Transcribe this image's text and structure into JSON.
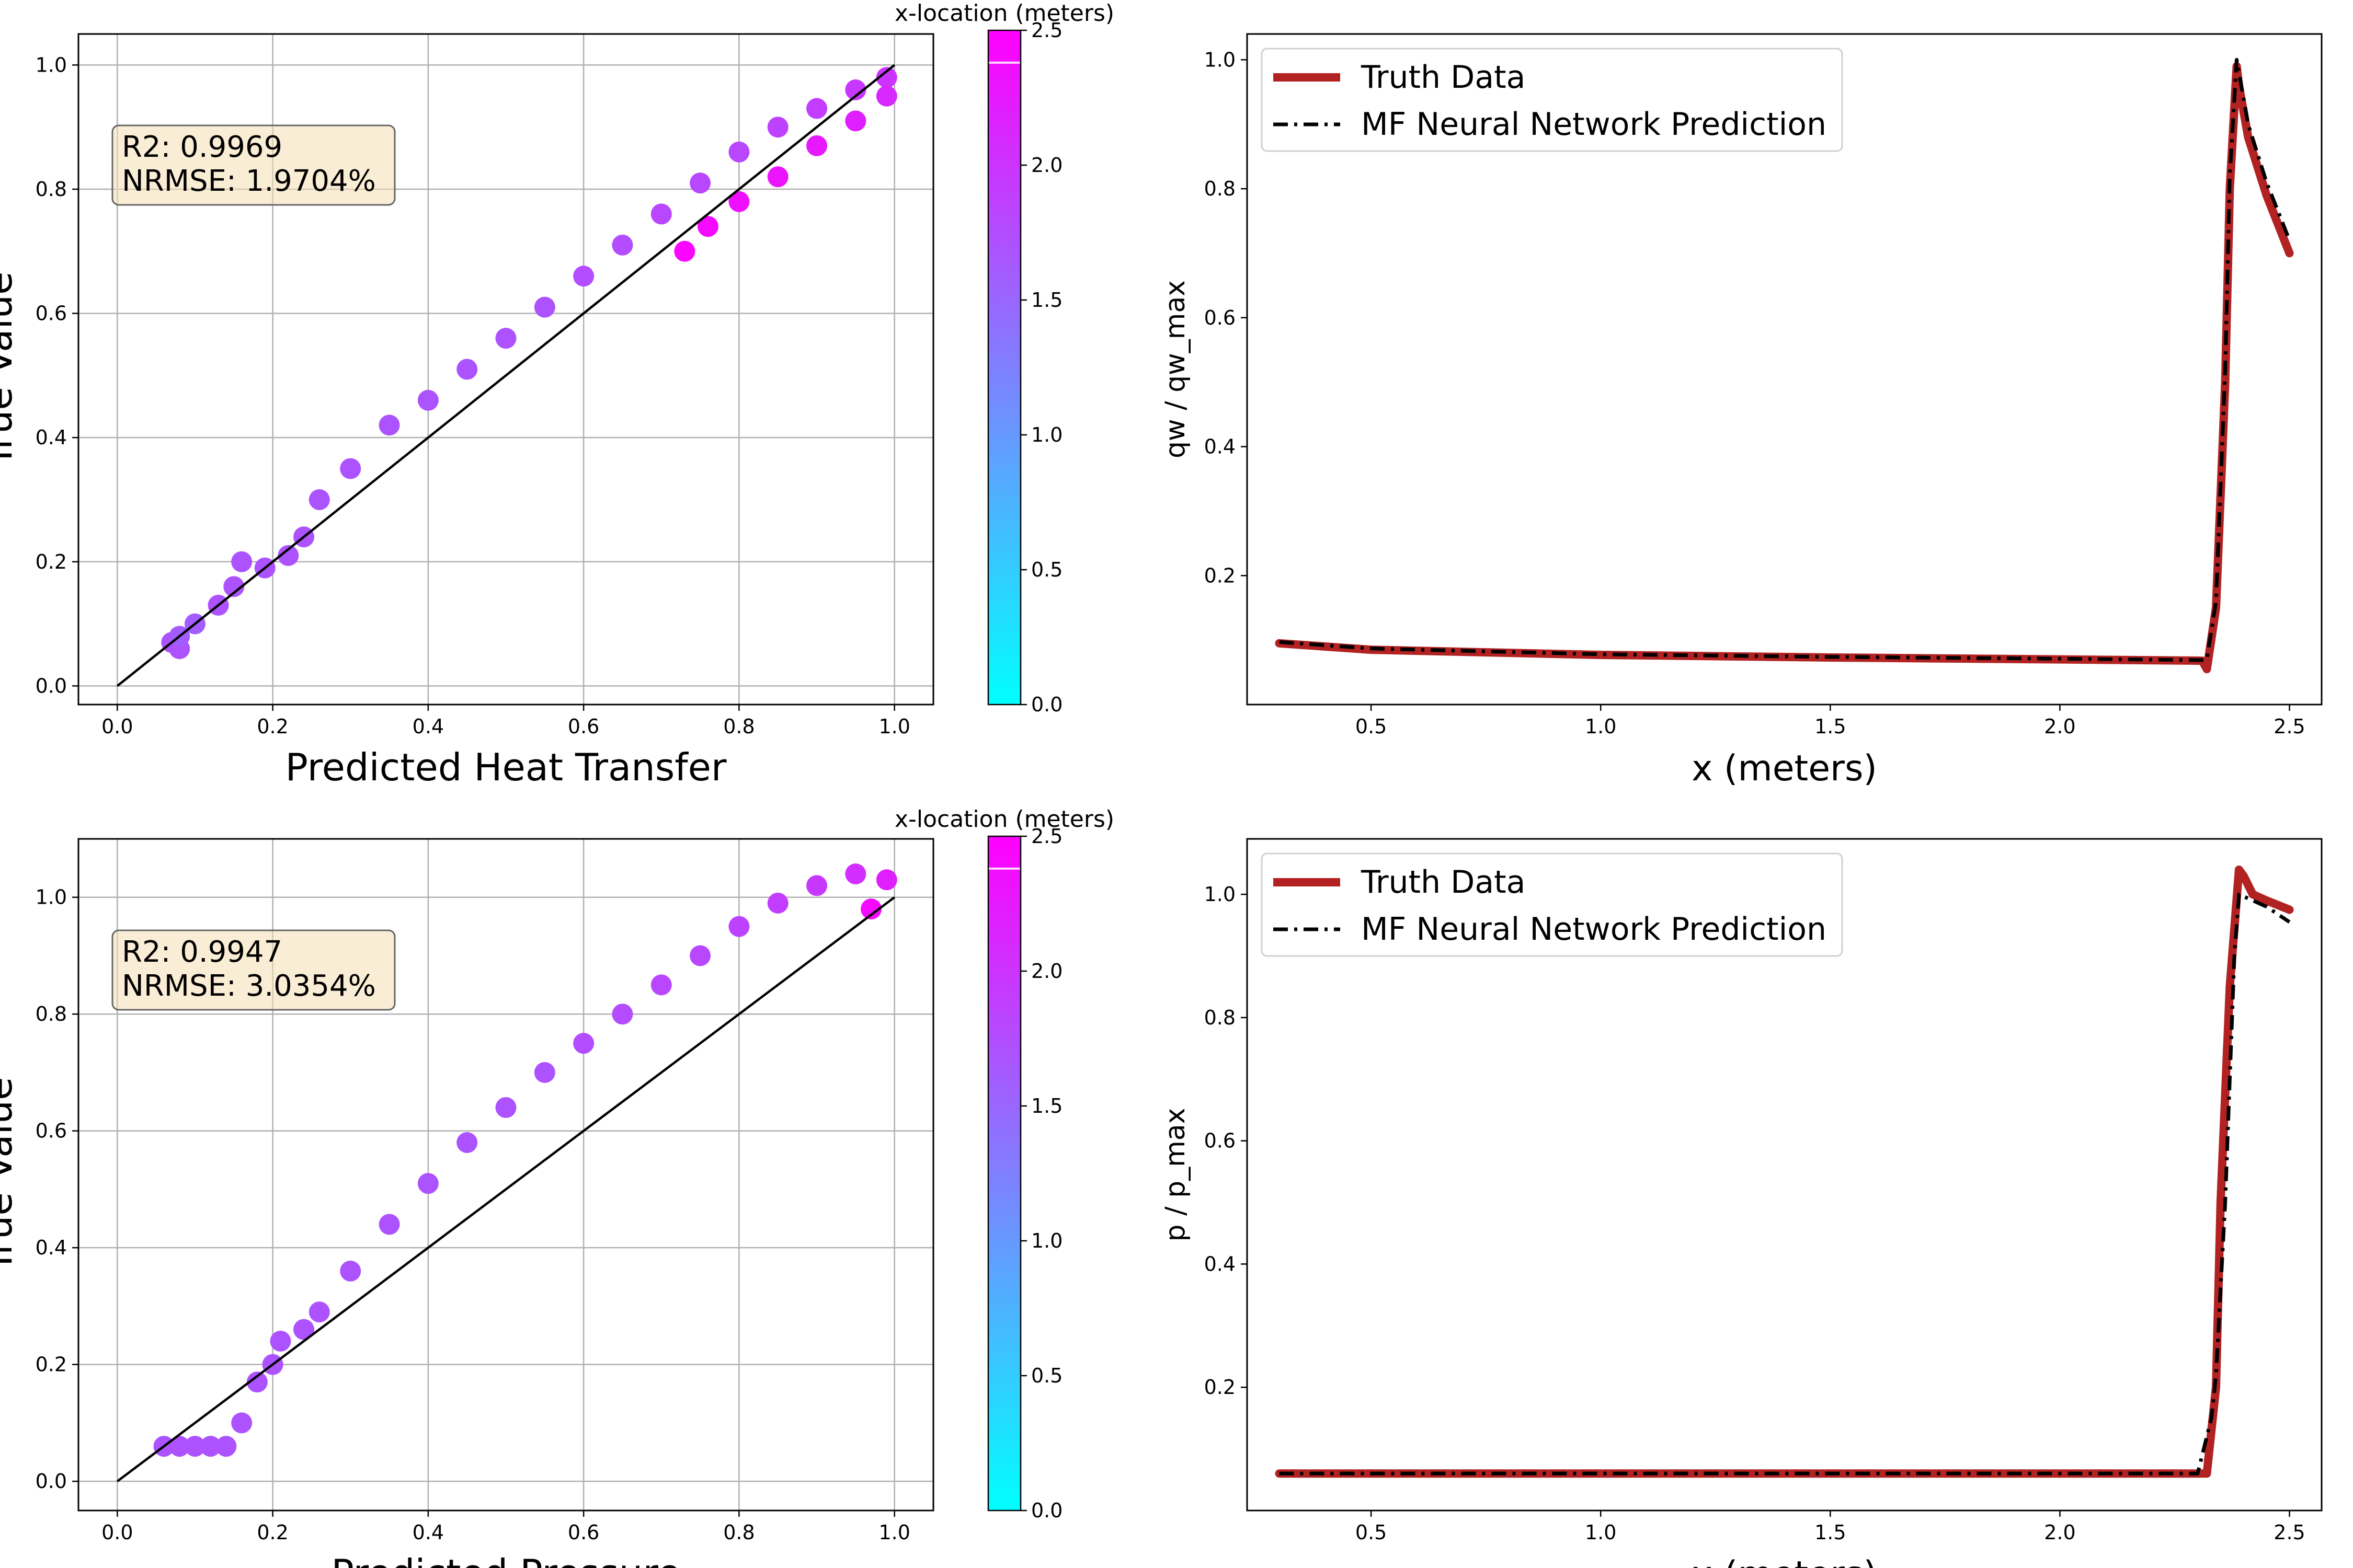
{
  "chart_data": [
    {
      "type": "scatter",
      "xlabel": "Predicted Heat Transfer",
      "ylabel": "True Value",
      "xlim": [
        -0.05,
        1.05
      ],
      "ylim": [
        -0.03,
        1.05
      ],
      "xticks": [
        "0.0",
        "0.2",
        "0.4",
        "0.6",
        "0.8",
        "1.0"
      ],
      "yticks": [
        "0.0",
        "0.2",
        "0.4",
        "0.6",
        "0.8",
        "1.0"
      ],
      "grid": true,
      "stats": [
        "R2: 0.9969",
        "NRMSE: 1.9704%"
      ],
      "colorbar": {
        "label": "x-location (meters)",
        "range": [
          0.0,
          2.5
        ],
        "ticks": [
          "0.0",
          "0.5",
          "1.0",
          "1.5",
          "2.0",
          "2.5"
        ],
        "colormap": "cool"
      },
      "identity_line": [
        [
          0,
          0
        ],
        [
          1,
          1
        ]
      ],
      "points": [
        {
          "x": 0.07,
          "y": 0.07,
          "c": 1.7
        },
        {
          "x": 0.08,
          "y": 0.06,
          "c": 1.7
        },
        {
          "x": 0.08,
          "y": 0.08,
          "c": 1.6
        },
        {
          "x": 0.1,
          "y": 0.1,
          "c": 1.6
        },
        {
          "x": 0.13,
          "y": 0.13,
          "c": 1.7
        },
        {
          "x": 0.15,
          "y": 0.16,
          "c": 1.7
        },
        {
          "x": 0.16,
          "y": 0.2,
          "c": 1.7
        },
        {
          "x": 0.19,
          "y": 0.19,
          "c": 1.7
        },
        {
          "x": 0.22,
          "y": 0.21,
          "c": 1.7
        },
        {
          "x": 0.24,
          "y": 0.24,
          "c": 1.7
        },
        {
          "x": 0.26,
          "y": 0.3,
          "c": 1.7
        },
        {
          "x": 0.3,
          "y": 0.35,
          "c": 1.7
        },
        {
          "x": 0.35,
          "y": 0.42,
          "c": 1.7
        },
        {
          "x": 0.4,
          "y": 0.46,
          "c": 1.7
        },
        {
          "x": 0.45,
          "y": 0.51,
          "c": 1.7
        },
        {
          "x": 0.5,
          "y": 0.56,
          "c": 1.7
        },
        {
          "x": 0.55,
          "y": 0.61,
          "c": 1.7
        },
        {
          "x": 0.6,
          "y": 0.66,
          "c": 1.75
        },
        {
          "x": 0.65,
          "y": 0.71,
          "c": 1.75
        },
        {
          "x": 0.7,
          "y": 0.76,
          "c": 1.8
        },
        {
          "x": 0.75,
          "y": 0.81,
          "c": 1.8
        },
        {
          "x": 0.8,
          "y": 0.86,
          "c": 1.8
        },
        {
          "x": 0.85,
          "y": 0.9,
          "c": 1.85
        },
        {
          "x": 0.9,
          "y": 0.93,
          "c": 1.9
        },
        {
          "x": 0.95,
          "y": 0.96,
          "c": 1.95
        },
        {
          "x": 0.99,
          "y": 0.98,
          "c": 2.0
        },
        {
          "x": 0.99,
          "y": 0.95,
          "c": 2.1
        },
        {
          "x": 0.95,
          "y": 0.91,
          "c": 2.2
        },
        {
          "x": 0.9,
          "y": 0.87,
          "c": 2.25
        },
        {
          "x": 0.85,
          "y": 0.82,
          "c": 2.3
        },
        {
          "x": 0.8,
          "y": 0.78,
          "c": 2.35
        },
        {
          "x": 0.76,
          "y": 0.74,
          "c": 2.4
        },
        {
          "x": 0.73,
          "y": 0.7,
          "c": 2.45
        }
      ]
    },
    {
      "type": "line",
      "xlabel": "x (meters)",
      "ylabel": "qw / qw_max",
      "xlim": [
        0.23,
        2.57
      ],
      "ylim": [
        0.0,
        1.04
      ],
      "xticks": [
        "0.5",
        "1.0",
        "1.5",
        "2.0",
        "2.5"
      ],
      "yticks": [
        "0.2",
        "0.4",
        "0.6",
        "0.8",
        "1.0"
      ],
      "grid": false,
      "legend": "top-left",
      "series": [
        {
          "name": "Truth Data",
          "color": "#b22222",
          "style": "solid",
          "x": [
            0.3,
            0.5,
            1.0,
            1.5,
            2.0,
            2.31,
            2.32,
            2.34,
            2.36,
            2.37,
            2.385,
            2.39,
            2.41,
            2.45,
            2.5
          ],
          "y": [
            0.095,
            0.085,
            0.077,
            0.073,
            0.07,
            0.068,
            0.055,
            0.15,
            0.5,
            0.8,
            0.99,
            0.96,
            0.88,
            0.79,
            0.7
          ]
        },
        {
          "name": "MF Neural Network Prediction",
          "color": "#000000",
          "style": "dashdot",
          "x": [
            0.3,
            0.5,
            1.0,
            1.5,
            2.0,
            2.31,
            2.32,
            2.34,
            2.36,
            2.37,
            2.385,
            2.39,
            2.41,
            2.45,
            2.5
          ],
          "y": [
            0.097,
            0.087,
            0.078,
            0.074,
            0.071,
            0.069,
            0.07,
            0.16,
            0.52,
            0.82,
            1.0,
            0.98,
            0.9,
            0.81,
            0.72
          ]
        }
      ]
    },
    {
      "type": "scatter",
      "xlabel": "Predicted Pressure",
      "ylabel": "True Value",
      "xlim": [
        -0.05,
        1.05
      ],
      "ylim": [
        -0.05,
        1.1
      ],
      "xticks": [
        "0.0",
        "0.2",
        "0.4",
        "0.6",
        "0.8",
        "1.0"
      ],
      "yticks": [
        "0.0",
        "0.2",
        "0.4",
        "0.6",
        "0.8",
        "1.0"
      ],
      "grid": true,
      "stats": [
        "R2: 0.9947",
        "NRMSE: 3.0354%"
      ],
      "colorbar": {
        "label": "x-location (meters)",
        "range": [
          0.0,
          2.5
        ],
        "ticks": [
          "0.0",
          "0.5",
          "1.0",
          "1.5",
          "2.0",
          "2.5"
        ],
        "colormap": "cool"
      },
      "identity_line": [
        [
          0,
          0
        ],
        [
          1,
          1
        ]
      ],
      "points": [
        {
          "x": 0.06,
          "y": 0.06,
          "c": 1.7
        },
        {
          "x": 0.08,
          "y": 0.06,
          "c": 1.7
        },
        {
          "x": 0.1,
          "y": 0.06,
          "c": 1.7
        },
        {
          "x": 0.12,
          "y": 0.06,
          "c": 1.7
        },
        {
          "x": 0.14,
          "y": 0.06,
          "c": 1.7
        },
        {
          "x": 0.16,
          "y": 0.1,
          "c": 1.7
        },
        {
          "x": 0.18,
          "y": 0.17,
          "c": 1.7
        },
        {
          "x": 0.2,
          "y": 0.2,
          "c": 1.7
        },
        {
          "x": 0.21,
          "y": 0.24,
          "c": 1.7
        },
        {
          "x": 0.24,
          "y": 0.26,
          "c": 1.7
        },
        {
          "x": 0.26,
          "y": 0.29,
          "c": 1.7
        },
        {
          "x": 0.3,
          "y": 0.36,
          "c": 1.7
        },
        {
          "x": 0.35,
          "y": 0.44,
          "c": 1.7
        },
        {
          "x": 0.4,
          "y": 0.51,
          "c": 1.7
        },
        {
          "x": 0.45,
          "y": 0.58,
          "c": 1.7
        },
        {
          "x": 0.5,
          "y": 0.64,
          "c": 1.7
        },
        {
          "x": 0.55,
          "y": 0.7,
          "c": 1.7
        },
        {
          "x": 0.6,
          "y": 0.75,
          "c": 1.75
        },
        {
          "x": 0.65,
          "y": 0.8,
          "c": 1.75
        },
        {
          "x": 0.7,
          "y": 0.85,
          "c": 1.8
        },
        {
          "x": 0.75,
          "y": 0.9,
          "c": 1.8
        },
        {
          "x": 0.8,
          "y": 0.95,
          "c": 1.85
        },
        {
          "x": 0.85,
          "y": 0.99,
          "c": 1.9
        },
        {
          "x": 0.9,
          "y": 1.02,
          "c": 1.95
        },
        {
          "x": 0.95,
          "y": 1.04,
          "c": 2.05
        },
        {
          "x": 0.99,
          "y": 1.03,
          "c": 2.2
        },
        {
          "x": 0.97,
          "y": 0.98,
          "c": 2.4
        }
      ]
    },
    {
      "type": "line",
      "xlabel": "x (meters)",
      "ylabel": "p / p_max",
      "xlim": [
        0.23,
        2.57
      ],
      "ylim": [
        0.0,
        1.09
      ],
      "xticks": [
        "0.5",
        "1.0",
        "1.5",
        "2.0",
        "2.5"
      ],
      "yticks": [
        "0.2",
        "0.4",
        "0.6",
        "0.8",
        "1.0"
      ],
      "grid": false,
      "legend": "top-left",
      "series": [
        {
          "name": "Truth Data",
          "color": "#b22222",
          "style": "solid",
          "x": [
            0.3,
            1.0,
            2.0,
            2.32,
            2.34,
            2.35,
            2.37,
            2.39,
            2.4,
            2.42,
            2.45,
            2.5
          ],
          "y": [
            0.06,
            0.06,
            0.06,
            0.06,
            0.2,
            0.5,
            0.85,
            1.04,
            1.03,
            1.0,
            0.99,
            0.975
          ]
        },
        {
          "name": "MF Neural Network Prediction",
          "color": "#000000",
          "style": "dashdot",
          "x": [
            0.3,
            1.0,
            2.0,
            2.3,
            2.33,
            2.34,
            2.36,
            2.38,
            2.39,
            2.42,
            2.45,
            2.5
          ],
          "y": [
            0.06,
            0.06,
            0.06,
            0.06,
            0.15,
            0.22,
            0.5,
            0.9,
            1.0,
            0.99,
            0.98,
            0.955
          ]
        }
      ]
    }
  ]
}
